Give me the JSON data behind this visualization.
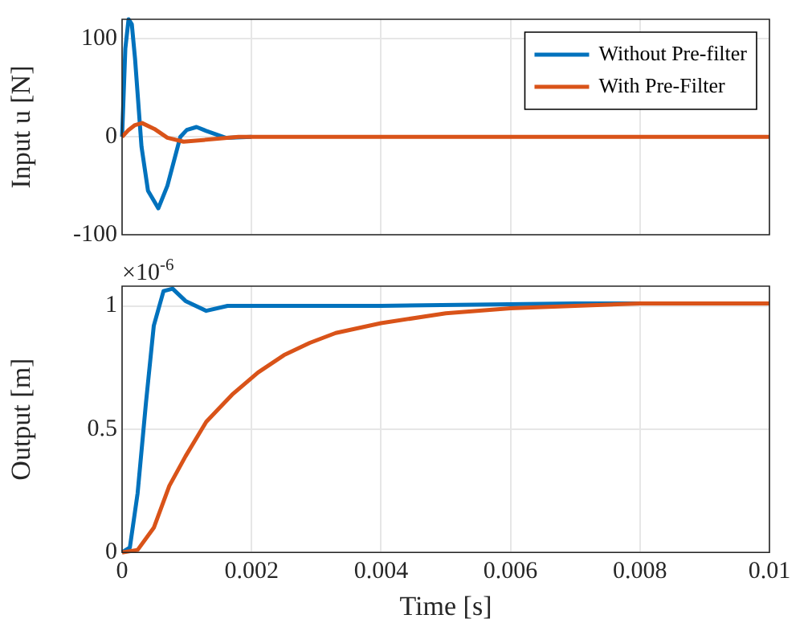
{
  "chart_data": [
    {
      "type": "line",
      "ylabel": "Input u [N]",
      "xlim": [
        0,
        0.01
      ],
      "xticks": [
        0,
        0.002,
        0.004,
        0.006,
        0.008,
        0.01
      ],
      "ylim": [
        -100,
        120
      ],
      "yticks": [
        -100,
        0,
        100
      ],
      "grid": true,
      "legend": "top right",
      "tick_labels": "y",
      "line_style": "solid",
      "marker": "none",
      "series": [
        {
          "name": "Without Pre-filter",
          "color": "#0072bd",
          "x": [
            0,
            5e-05,
            0.0001,
            0.00015,
            0.0002,
            0.0003,
            0.0004,
            0.00056,
            0.0007,
            0.0009,
            0.001,
            0.00115,
            0.0013,
            0.0016,
            0.002
          ],
          "values": [
            0,
            90,
            120,
            115,
            80,
            -10,
            -55,
            -73,
            -50,
            0,
            7,
            10,
            6,
            -1,
            0
          ]
        },
        {
          "name": "With Pre-Filter",
          "color": "#d95319",
          "x": [
            0,
            0.0001,
            0.0002,
            0.00031,
            0.0005,
            0.0007,
            0.00095,
            0.0013,
            0.0018,
            0.003,
            0.01
          ],
          "values": [
            0,
            7,
            12,
            14,
            8,
            -1,
            -5,
            -3,
            0,
            0,
            0
          ]
        }
      ]
    },
    {
      "type": "line",
      "xlabel": "Time [s]",
      "ylabel": "Output [m]",
      "xlim": [
        0,
        0.01
      ],
      "xticks": [
        0,
        0.002,
        0.004,
        0.006,
        0.008,
        0.01
      ],
      "ylim": [
        0,
        1.08
      ],
      "yticks": [
        0,
        0.5,
        1
      ],
      "grid": true,
      "legend": false,
      "line_style": "solid",
      "marker": "none",
      "annotations": [
        "×10$^{-6}$"
      ],
      "series": [
        {
          "color": "#0072bd",
          "x": [
            0,
            0.00012,
            0.00024,
            0.00037,
            0.00049,
            0.00064,
            0.00078,
            0.00098,
            0.0013,
            0.00163,
            0.0021,
            0.004,
            0.007,
            0.01
          ],
          "values": [
            0,
            0.02,
            0.24,
            0.61,
            0.92,
            1.06,
            1.07,
            1.02,
            0.98,
            1.0,
            1.0,
            1.0,
            1.01,
            1.01
          ]
        },
        {
          "color": "#d95319",
          "x": [
            0,
            0.00024,
            0.00049,
            0.00073,
            0.00098,
            0.0013,
            0.0017,
            0.0021,
            0.0025,
            0.0029,
            0.0033,
            0.004,
            0.005,
            0.006,
            0.007,
            0.008,
            0.01
          ],
          "values": [
            0,
            0.01,
            0.1,
            0.27,
            0.39,
            0.53,
            0.64,
            0.73,
            0.8,
            0.85,
            0.89,
            0.93,
            0.97,
            0.99,
            1.0,
            1.01,
            1.01
          ]
        }
      ]
    }
  ]
}
